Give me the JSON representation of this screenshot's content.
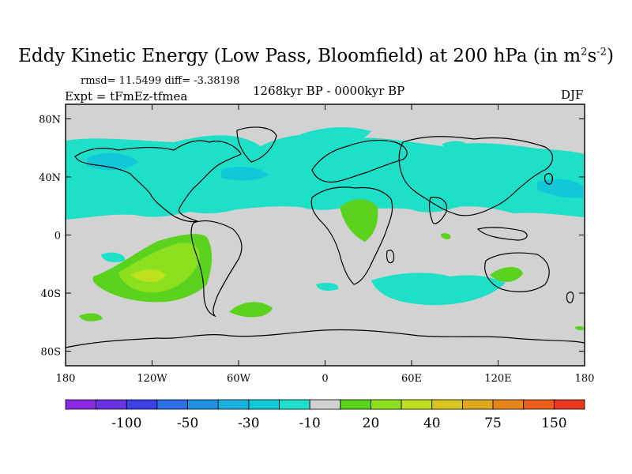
{
  "header": {
    "title_main": "Eddy Kinetic Energy (Low Pass, Bloomfield) at 200 hPa (in m",
    "title_sup1": "2",
    "title_mid": "s",
    "title_sup2": "-2",
    "title_end": ")",
    "stats": "rmsd= 11.5499 diff= -3.38198",
    "experiment": "Expt = tFmEz-tfmea",
    "period": "1268kyr BP - 0000kyr BP",
    "season": "DJF"
  },
  "map": {
    "projection": "cylindrical equidistant",
    "lon_range": [
      -180,
      180
    ],
    "lat_range": [
      -90,
      90
    ],
    "lat_ticks": [
      {
        "value": 80,
        "label": "80N"
      },
      {
        "value": 40,
        "label": "40N"
      },
      {
        "value": 0,
        "label": "0"
      },
      {
        "value": -40,
        "label": "40S"
      },
      {
        "value": -80,
        "label": "80S"
      }
    ],
    "lon_ticks": [
      {
        "value": -180,
        "label": "180"
      },
      {
        "value": -120,
        "label": "120W"
      },
      {
        "value": -60,
        "label": "60W"
      },
      {
        "value": 0,
        "label": "0"
      },
      {
        "value": 60,
        "label": "60E"
      },
      {
        "value": 120,
        "label": "120E"
      },
      {
        "value": 180,
        "label": "180"
      }
    ],
    "background_color": "#d2d2d2"
  },
  "colorbar": {
    "colors": [
      "#8a2be2",
      "#6a33e0",
      "#3f3fe8",
      "#2f6fe6",
      "#2090e0",
      "#1ab0de",
      "#12c8d8",
      "#1ee0c8",
      "#d2d2d2",
      "#5ad21e",
      "#8ce01e",
      "#bee01e",
      "#d8c81e",
      "#e0a81e",
      "#e8861e",
      "#ea5e1e",
      "#e8381e"
    ],
    "labels": [
      {
        "boundary": 2,
        "text": "-100"
      },
      {
        "boundary": 4,
        "text": "-50"
      },
      {
        "boundary": 6,
        "text": "-30"
      },
      {
        "boundary": 8,
        "text": "-10"
      },
      {
        "boundary": 10,
        "text": "20"
      },
      {
        "boundary": 12,
        "text": "40"
      },
      {
        "boundary": 14,
        "text": "75"
      },
      {
        "boundary": 16,
        "text": "150"
      }
    ]
  }
}
